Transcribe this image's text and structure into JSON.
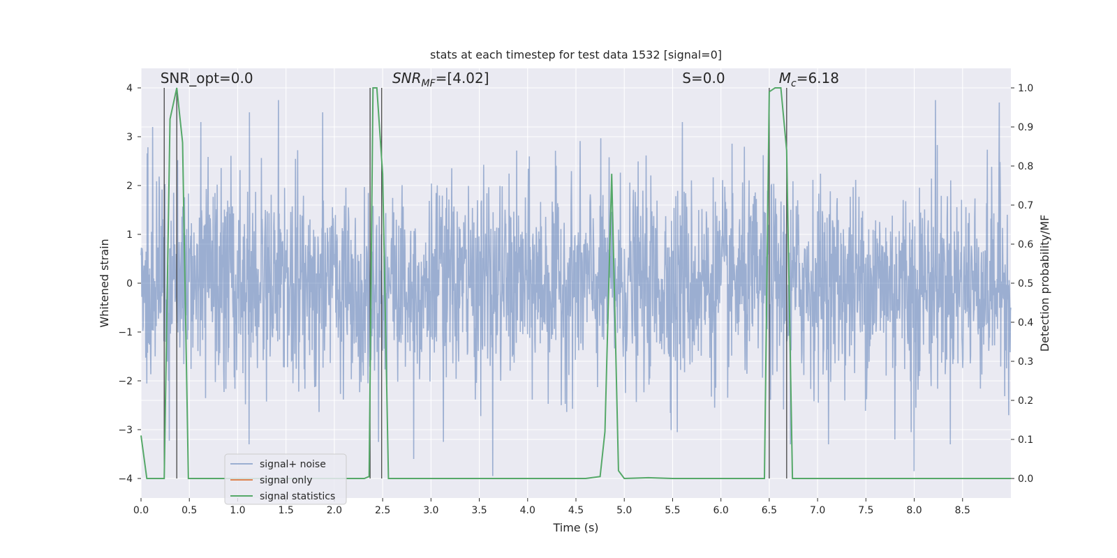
{
  "chart_data": {
    "type": "line",
    "title": "stats at each timestep for test data 1532 [signal=0]",
    "xlabel": "Time (s)",
    "ylabel": "Whitened strain",
    "y2label": "Detection probability/MF",
    "xlim": [
      0.0,
      9.0
    ],
    "ylim": [
      -4.4,
      4.4
    ],
    "y2lim": [
      -0.05,
      1.05
    ],
    "x_ticks": [
      0.0,
      0.5,
      1.0,
      1.5,
      2.0,
      2.5,
      3.0,
      3.5,
      4.0,
      4.5,
      5.0,
      5.5,
      6.0,
      6.5,
      7.0,
      7.5,
      8.0,
      8.5
    ],
    "x_tick_labels": [
      "0.0",
      "0.5",
      "1.0",
      "1.5",
      "2.0",
      "2.5",
      "3.0",
      "3.5",
      "4.0",
      "4.5",
      "5.0",
      "5.5",
      "6.0",
      "6.5",
      "7.0",
      "7.5",
      "8.0",
      "8.5"
    ],
    "y_ticks": [
      -4,
      -3,
      -2,
      -1,
      0,
      1,
      2,
      3,
      4
    ],
    "y_tick_labels": [
      "−4",
      "−3",
      "−2",
      "−1",
      "0",
      "1",
      "2",
      "3",
      "4"
    ],
    "y2_ticks": [
      0.0,
      0.1,
      0.2,
      0.3,
      0.4,
      0.5,
      0.6,
      0.7,
      0.8,
      0.9,
      1.0
    ],
    "y2_tick_labels": [
      "0.0",
      "0.1",
      "0.2",
      "0.3",
      "0.4",
      "0.5",
      "0.6",
      "0.7",
      "0.8",
      "0.9",
      "1.0"
    ],
    "grid": true,
    "legend_position": "lower-left",
    "annotations": [
      {
        "text": "SNR_opt=0.0",
        "x": 0.2,
        "y": 4.1
      },
      {
        "text": "SNR_MF=[4.02]",
        "x": 2.6,
        "y": 4.1
      },
      {
        "text": "S=0.0",
        "x": 5.6,
        "y": 4.1
      },
      {
        "text": "M_c=6.18",
        "x": 6.6,
        "y": 4.1
      }
    ],
    "vertical_lines_x": [
      0.24,
      0.37,
      2.37,
      2.49,
      6.5,
      6.68
    ],
    "series": [
      {
        "name": "signal+ noise",
        "color": "#4c72b0",
        "kind": "noise",
        "duration": 9.0,
        "sigma": 1.0,
        "x_spikes": [
          {
            "x": 0.12,
            "y": 3.2
          },
          {
            "x": 0.62,
            "y": 3.3
          },
          {
            "x": 1.12,
            "y": 3.5
          },
          {
            "x": 1.42,
            "y": 3.75
          },
          {
            "x": 1.88,
            "y": 3.5
          },
          {
            "x": 2.35,
            "y": -2.05
          },
          {
            "x": 2.82,
            "y": -3.6
          },
          {
            "x": 3.13,
            "y": -3.25
          },
          {
            "x": 3.64,
            "y": -3.95
          },
          {
            "x": 5.6,
            "y": 3.3
          },
          {
            "x": 6.72,
            "y": -3.3
          },
          {
            "x": 7.8,
            "y": -3.2
          },
          {
            "x": 8.0,
            "y": -3.85
          },
          {
            "x": 8.22,
            "y": 3.75
          },
          {
            "x": 8.88,
            "y": 3.7
          },
          {
            "x": 7.97,
            "y": -3.05
          },
          {
            "x": 5.55,
            "y": -3.05
          }
        ]
      },
      {
        "name": "signal only",
        "color": "#dd8452",
        "x": [],
        "y": []
      },
      {
        "name": "signal statistics",
        "color": "#55a868",
        "axis": "right",
        "x": [
          0.0,
          0.06,
          0.12,
          0.18,
          0.24,
          0.3,
          0.37,
          0.43,
          0.49,
          0.55,
          1.0,
          2.0,
          2.31,
          2.36,
          2.4,
          2.44,
          2.5,
          2.56,
          2.62,
          3.0,
          4.0,
          4.6,
          4.75,
          4.8,
          4.87,
          4.94,
          5.0,
          5.25,
          5.5,
          6.0,
          6.45,
          6.5,
          6.56,
          6.62,
          6.68,
          6.74,
          6.8,
          6.86,
          7.0,
          8.0,
          9.0
        ],
        "y": [
          0.11,
          0.0,
          0.0,
          0.0,
          0.0,
          0.92,
          1.0,
          0.86,
          0.0,
          0.0,
          0.0,
          0.0,
          0.0,
          0.005,
          1.0,
          1.0,
          0.78,
          0.0,
          0.0,
          0.0,
          0.0,
          0.0,
          0.005,
          0.12,
          0.78,
          0.02,
          0.0,
          0.002,
          0.0,
          0.0,
          0.0,
          0.99,
          1.0,
          1.0,
          0.84,
          0.0,
          0.0,
          0.0,
          0.0,
          0.0,
          0.0
        ]
      }
    ]
  }
}
